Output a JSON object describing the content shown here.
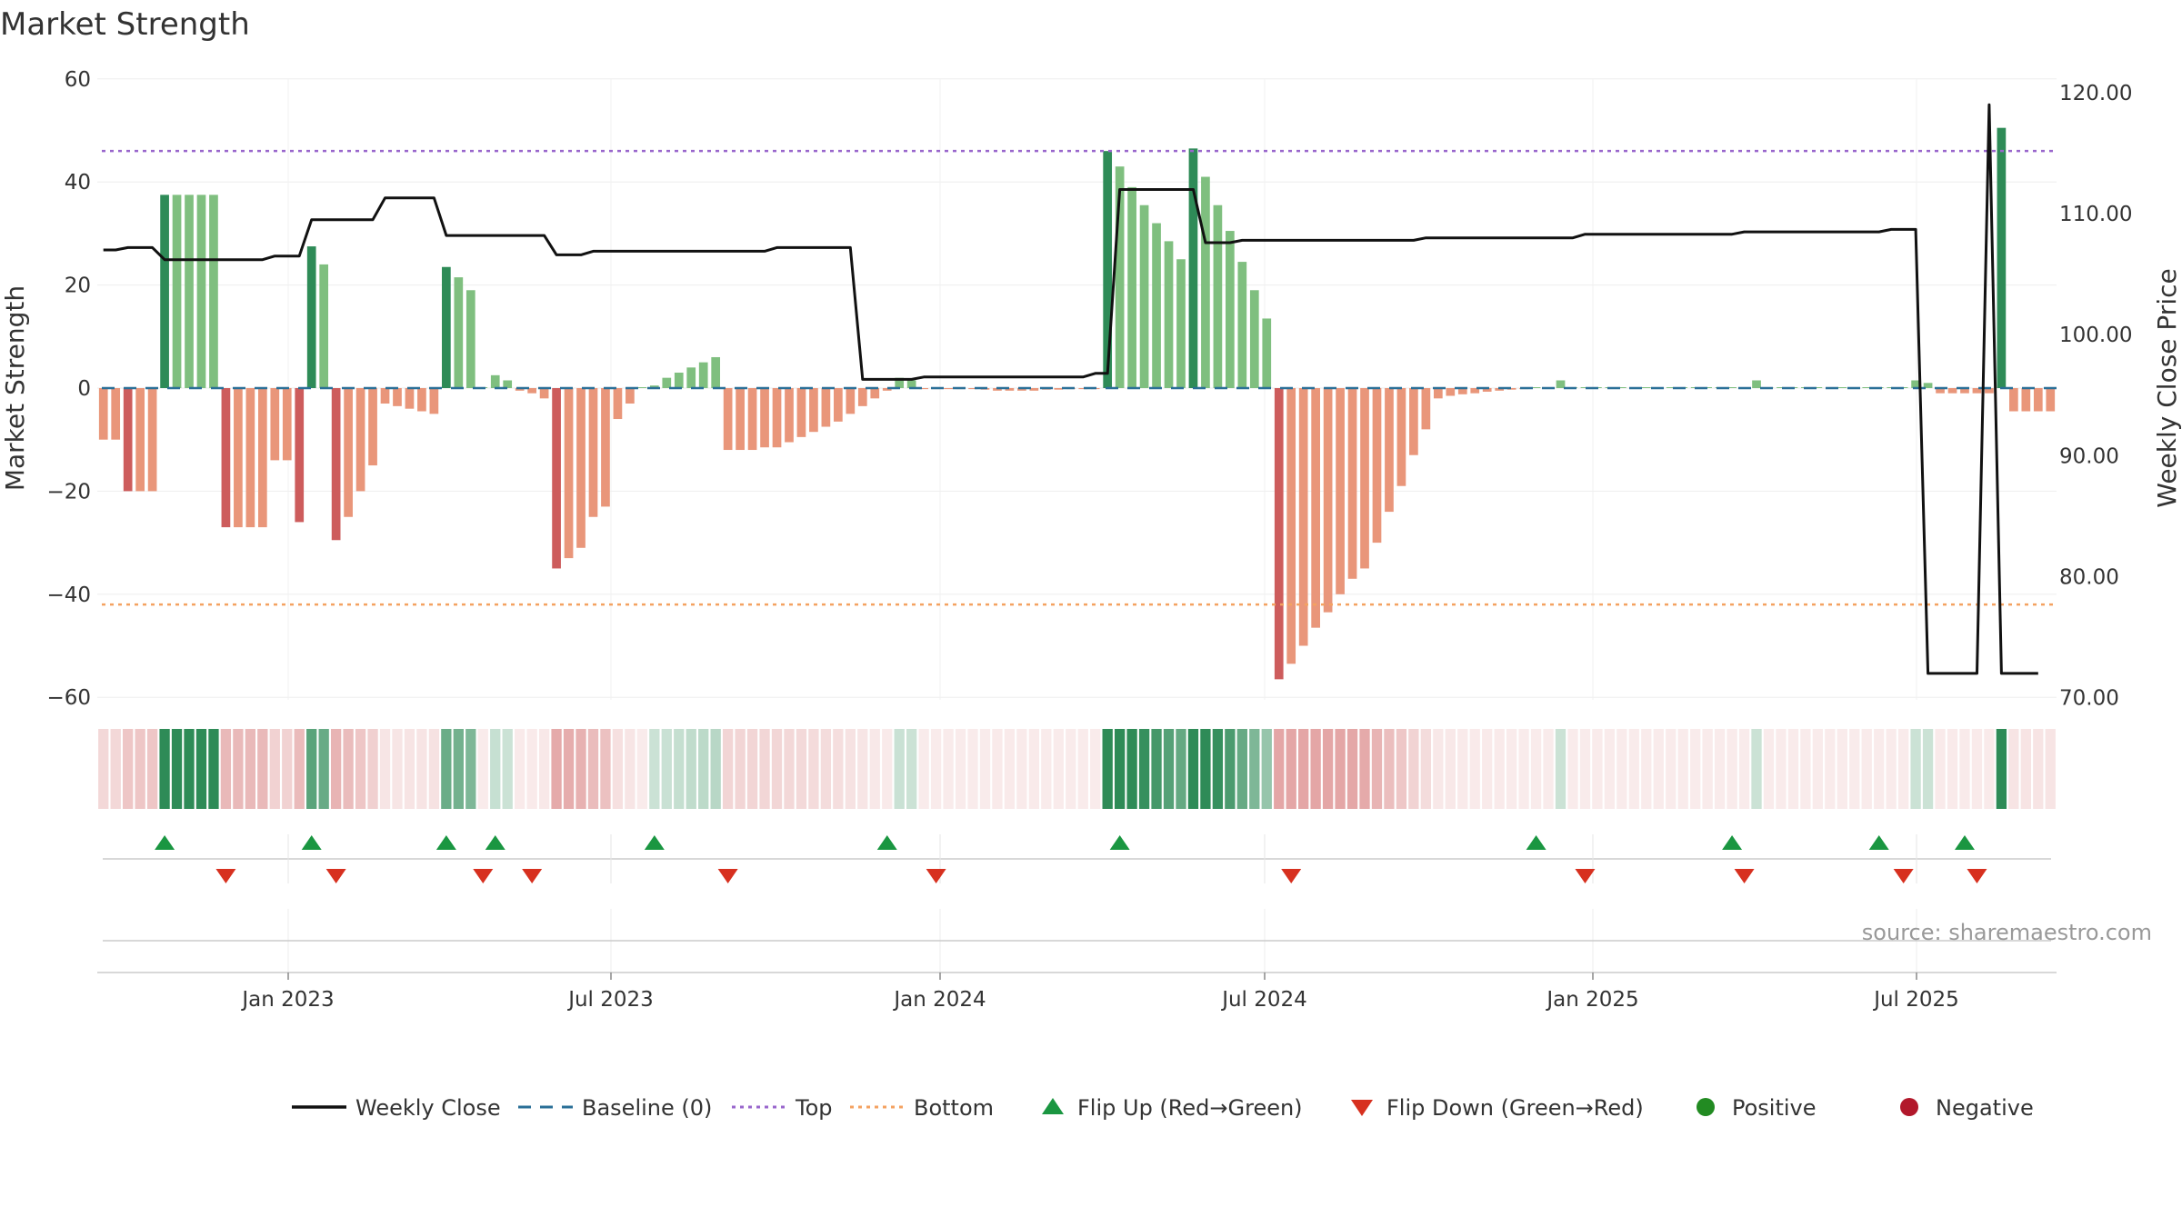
{
  "chart_data": {
    "type": "bar",
    "title": "Market Strength",
    "ylabel": "Market Strength",
    "y2label": "Weekly Close Price",
    "ylim": [
      -60,
      60
    ],
    "y2lim": [
      70,
      120
    ],
    "yticks": [
      "60",
      "40",
      "20",
      "0",
      "−20",
      "−40",
      "−60"
    ],
    "y2ticks": [
      "120.00",
      "110.00",
      "100.00",
      "90.00",
      "80.00",
      "70.00"
    ],
    "xticks": [
      "Jan 2023",
      "Jul 2023",
      "Jan 2024",
      "Jul 2024",
      "Jan 2025",
      "Jul 2025"
    ],
    "top_line": 46,
    "bottom_line": -42,
    "strength": [
      -10,
      -10,
      -20,
      -20,
      -20,
      37.5,
      37.5,
      37.5,
      37.5,
      37.5,
      -27,
      -27,
      -27,
      -27,
      -14,
      -14,
      -26,
      27.5,
      24,
      -29.5,
      -25,
      -20,
      -15,
      -3,
      -3.5,
      -4,
      -4.5,
      -5,
      23.5,
      21.5,
      19,
      0,
      2.5,
      1.5,
      -0.5,
      -1,
      -2,
      -35,
      -33,
      -31,
      -25,
      -23,
      -6,
      -3,
      0,
      0.5,
      2,
      3,
      4,
      5,
      6,
      -12,
      -12,
      -12,
      -11.5,
      -11.5,
      -10.5,
      -9.5,
      -8.5,
      -7.5,
      -6.5,
      -5,
      -3.5,
      -2,
      -0.5,
      2,
      1.5,
      -0.2,
      -0.2,
      -0.2,
      -0.2,
      -0.2,
      -0.3,
      -0.5,
      -0.5,
      -0.5,
      -0.5,
      -0.3,
      -0.3,
      -0.2,
      -0.2,
      -0.2,
      46,
      43,
      39,
      35.5,
      32,
      28.5,
      25,
      46.5,
      41,
      35.5,
      30.5,
      24.5,
      19,
      13.5,
      -56.5,
      -53.5,
      -50,
      -46.5,
      -43.5,
      -40,
      -37,
      -35,
      -30,
      -24,
      -19,
      -13,
      -8,
      -2,
      -1.5,
      -1.2,
      -1,
      -0.7,
      -0.5,
      -0.3,
      -0.2,
      0,
      0,
      1.5,
      0,
      0,
      0,
      0,
      0,
      0,
      0,
      0,
      0,
      0,
      0,
      0,
      0,
      0,
      0,
      1.5,
      0,
      0,
      0,
      0,
      0,
      0,
      0,
      0,
      0,
      0,
      0,
      0,
      1.5,
      1,
      -1,
      -1,
      -1,
      -1,
      -1,
      50.5,
      -4.5,
      -4.5,
      -4.5,
      -4.5
    ],
    "weekly_close": [
      107,
      107,
      107.2,
      107.2,
      107.2,
      106.2,
      106.2,
      106.2,
      106.2,
      106.2,
      106.2,
      106.2,
      106.2,
      106.2,
      106.5,
      106.5,
      106.5,
      109.5,
      109.5,
      109.5,
      109.5,
      109.5,
      109.5,
      111.3,
      111.3,
      111.3,
      111.3,
      111.3,
      108.2,
      108.2,
      108.2,
      108.2,
      108.2,
      108.2,
      108.2,
      108.2,
      108.2,
      106.6,
      106.6,
      106.6,
      106.9,
      106.9,
      106.9,
      106.9,
      106.9,
      106.9,
      106.9,
      106.9,
      106.9,
      106.9,
      106.9,
      106.9,
      106.9,
      106.9,
      106.9,
      107.2,
      107.2,
      107.2,
      107.2,
      107.2,
      107.2,
      107.2,
      96.3,
      96.3,
      96.3,
      96.3,
      96.3,
      96.5,
      96.5,
      96.5,
      96.5,
      96.5,
      96.5,
      96.5,
      96.5,
      96.5,
      96.5,
      96.5,
      96.5,
      96.5,
      96.5,
      96.8,
      96.8,
      112,
      112,
      112,
      112,
      112,
      112,
      112,
      107.6,
      107.6,
      107.6,
      107.8,
      107.8,
      107.8,
      107.8,
      107.8,
      107.8,
      107.8,
      107.8,
      107.8,
      107.8,
      107.8,
      107.8,
      107.8,
      107.8,
      107.8,
      108,
      108,
      108,
      108,
      108,
      108,
      108,
      108,
      108,
      108,
      108,
      108,
      108,
      108.3,
      108.3,
      108.3,
      108.3,
      108.3,
      108.3,
      108.3,
      108.3,
      108.3,
      108.3,
      108.3,
      108.3,
      108.3,
      108.5,
      108.5,
      108.5,
      108.5,
      108.5,
      108.5,
      108.5,
      108.5,
      108.5,
      108.5,
      108.5,
      108.5,
      108.7,
      108.7,
      108.7,
      72,
      72,
      72,
      72,
      72,
      119,
      72,
      72,
      72,
      72
    ],
    "flip_up_weeks": [
      5,
      17,
      28,
      32,
      45,
      64,
      83,
      117,
      133,
      145,
      152
    ],
    "flip_down_weeks": [
      10,
      19,
      31,
      35,
      51,
      68,
      97,
      121,
      134,
      147,
      153
    ],
    "source": "source: sharemaestro.com"
  },
  "legend": [
    {
      "label": "Weekly Close",
      "symbol": "solid-line",
      "color": "#111111"
    },
    {
      "label": "Baseline (0)",
      "symbol": "dashed-line",
      "color": "#2a6f97"
    },
    {
      "label": "Top",
      "symbol": "dotted-line",
      "color": "#9966cc"
    },
    {
      "label": "Bottom",
      "symbol": "dotted-line",
      "color": "#f4a261"
    },
    {
      "label": "Flip Up (Red→Green)",
      "symbol": "up-triangle",
      "color": "#1a9641"
    },
    {
      "label": "Flip Down (Green→Red)",
      "symbol": "down-triangle",
      "color": "#d7301f"
    },
    {
      "label": "Positive",
      "symbol": "circle",
      "color": "#228b22"
    },
    {
      "label": "Negative",
      "symbol": "circle",
      "color": "#b2182b"
    }
  ],
  "colors": {
    "strong_positive": "#2e8b57",
    "weak_positive": "#7fbf7f",
    "strong_negative": "#cd5c5c",
    "weak_negative": "#e9967a",
    "baseline": "#2a6f97",
    "top": "#9966cc",
    "bottom": "#f4a261",
    "close_line": "#111111"
  }
}
